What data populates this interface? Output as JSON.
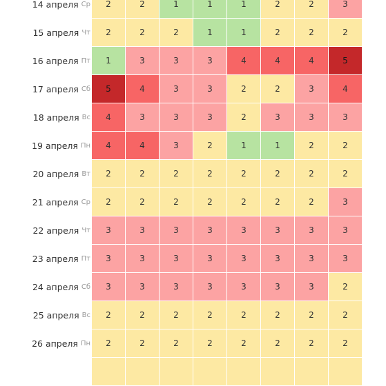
{
  "forecast": {
    "rows": [
      {
        "date": "14 апреля",
        "dow": "Ср",
        "values": [
          "2",
          "2",
          "1",
          "1",
          "1",
          "2",
          "2",
          "3"
        ]
      },
      {
        "date": "15 апреля",
        "dow": "Чт",
        "values": [
          "2",
          "2",
          "2",
          "1",
          "1",
          "2",
          "2",
          "2"
        ]
      },
      {
        "date": "16 апреля",
        "dow": "Пт",
        "values": [
          "1",
          "3",
          "3",
          "3",
          "4",
          "4",
          "4",
          "5"
        ]
      },
      {
        "date": "17 апреля",
        "dow": "Сб",
        "values": [
          "5",
          "4",
          "3",
          "3",
          "2",
          "2",
          "3",
          "4"
        ]
      },
      {
        "date": "18 апреля",
        "dow": "Вс",
        "values": [
          "4",
          "3",
          "3",
          "3",
          "2",
          "3",
          "3",
          "3"
        ]
      },
      {
        "date": "19 апреля",
        "dow": "Пн",
        "values": [
          "4",
          "4",
          "3",
          "2",
          "1",
          "1",
          "2",
          "2"
        ]
      },
      {
        "date": "20 апреля",
        "dow": "Вт",
        "values": [
          "2",
          "2",
          "2",
          "2",
          "2",
          "2",
          "2",
          "2"
        ]
      },
      {
        "date": "21 апреля",
        "dow": "Ср",
        "values": [
          "2",
          "2",
          "2",
          "2",
          "2",
          "2",
          "2",
          "3"
        ]
      },
      {
        "date": "22 апреля",
        "dow": "Чт",
        "values": [
          "3",
          "3",
          "3",
          "3",
          "3",
          "3",
          "3",
          "3"
        ]
      },
      {
        "date": "23 апреля",
        "dow": "Пт",
        "values": [
          "3",
          "3",
          "3",
          "3",
          "3",
          "3",
          "3",
          "3"
        ]
      },
      {
        "date": "24 апреля",
        "dow": "Сб",
        "values": [
          "3",
          "3",
          "3",
          "3",
          "3",
          "3",
          "3",
          "2"
        ]
      },
      {
        "date": "25 апреля",
        "dow": "Вс",
        "values": [
          "2",
          "2",
          "2",
          "2",
          "2",
          "2",
          "2",
          "2"
        ]
      },
      {
        "date": "26 апреля",
        "dow": "Пн",
        "values": [
          "2",
          "2",
          "2",
          "2",
          "2",
          "2",
          "2",
          "2"
        ]
      }
    ]
  },
  "level_colors": {
    "1": "#b7e3a1",
    "2": "#fde9a3",
    "3": "#fca3a3",
    "4": "#f76565",
    "5": "#c4282a"
  }
}
